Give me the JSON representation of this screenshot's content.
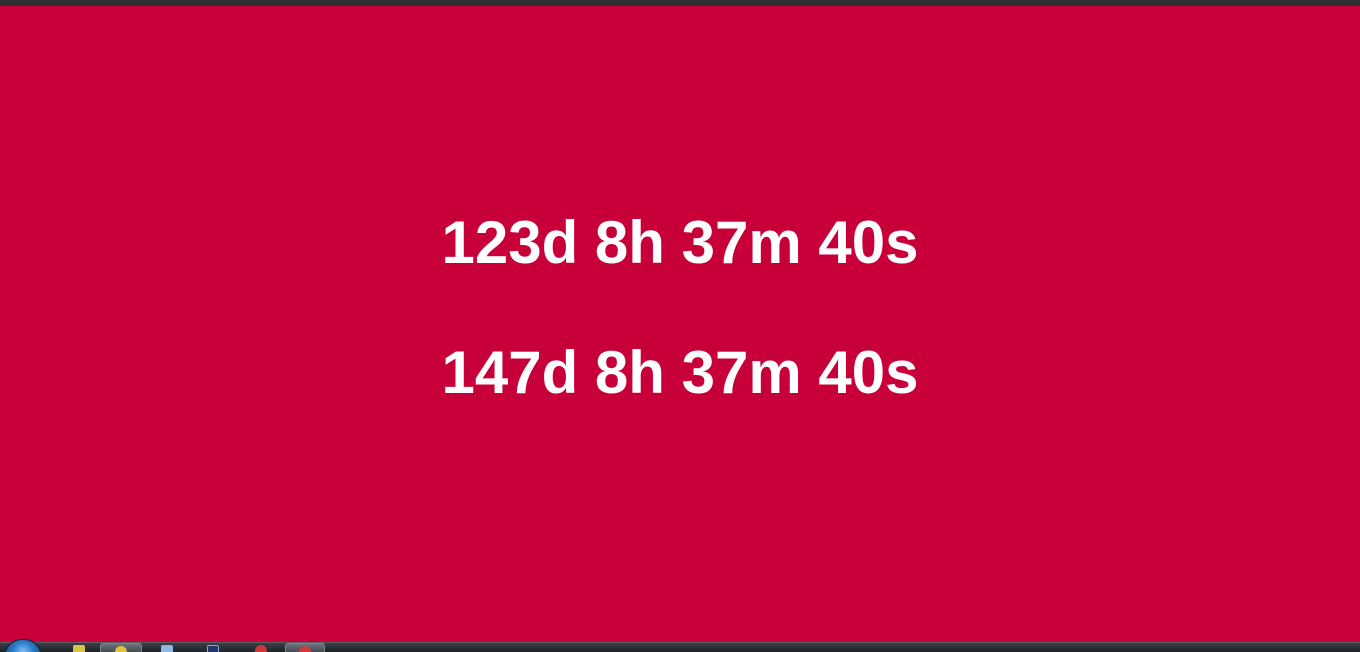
{
  "countdowns": [
    {
      "label": "123d 8h 37m 40s"
    },
    {
      "label": "147d 8h 37m 40s"
    }
  ],
  "colors": {
    "background": "#c8003a",
    "text": "#ffffff",
    "top_strip": "#2f2f2f",
    "taskbar": "#2a2e35"
  },
  "taskbar": {
    "start_icon": "windows-start-orb-icon",
    "items": [
      {
        "icon": "ie-browser-icon",
        "active": false
      },
      {
        "icon": "chrome-browser-icon",
        "active": true
      },
      {
        "icon": "file-explorer-icon",
        "active": false
      },
      {
        "icon": "window-app-icon",
        "active": false
      },
      {
        "icon": "red-app-icon",
        "active": false
      },
      {
        "icon": "opera-browser-icon",
        "active": true
      }
    ]
  }
}
